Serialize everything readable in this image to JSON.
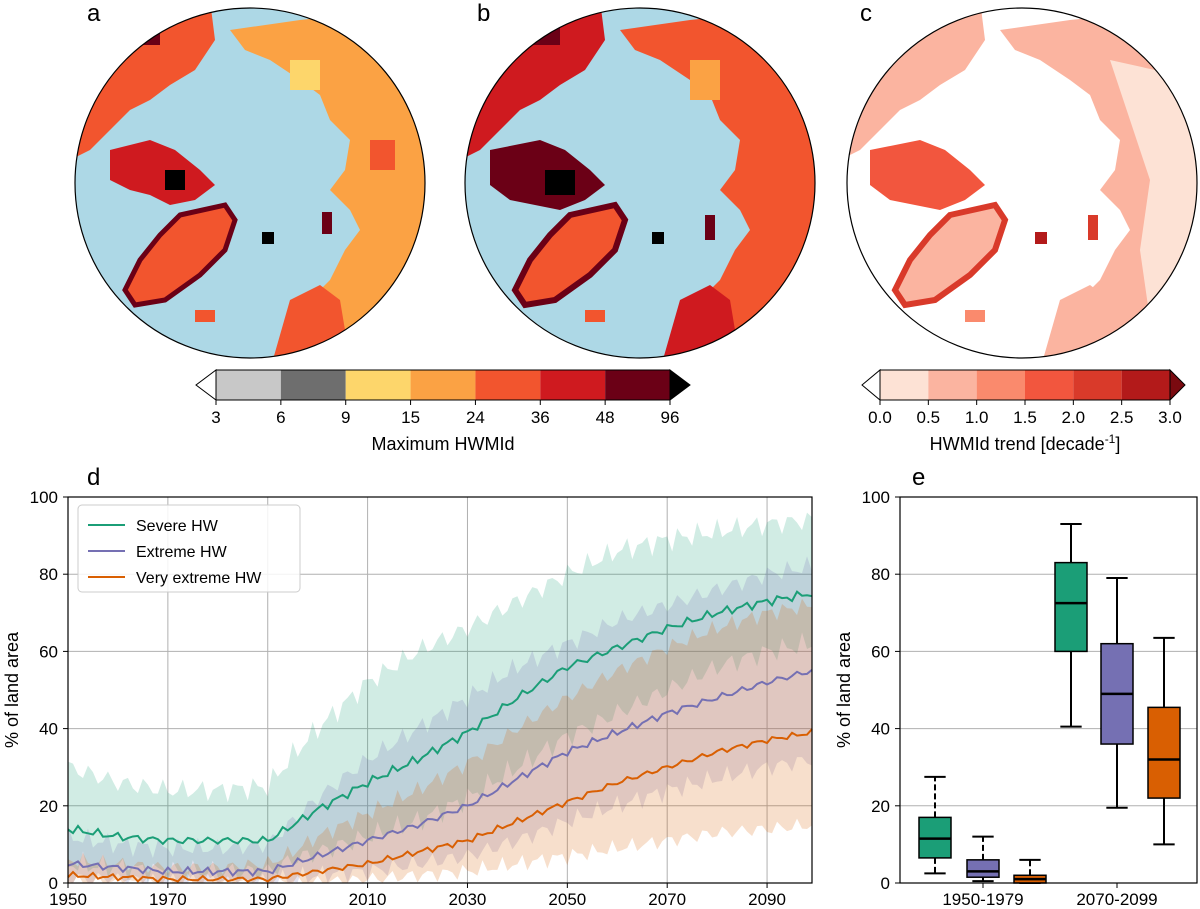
{
  "panels": {
    "a": {
      "label": "a"
    },
    "b": {
      "label": "b"
    },
    "c": {
      "label": "c"
    },
    "d": {
      "label": "d"
    },
    "e": {
      "label": "e"
    }
  },
  "colors": {
    "ocean": "#add8e6",
    "land_edge": "#333333",
    "severe": "#1b9e77",
    "extreme": "#7570b3",
    "very_extreme": "#d95f02",
    "hwmid_bins": [
      "#c8c8c8",
      "#6e6e6e",
      "#fdd66b",
      "#fba244",
      "#f2552e",
      "#cf1a1f",
      "#6b0016",
      "#000000"
    ],
    "trend_bins": [
      "#fde2d5",
      "#fbb4a0",
      "#fa8a6d",
      "#f2563e",
      "#d93a2a",
      "#b31a1a",
      "#7a0a10"
    ]
  },
  "colorbar_left": {
    "ticks": [
      "3",
      "6",
      "9",
      "15",
      "24",
      "36",
      "48",
      "96"
    ],
    "label": "Maximum HWMId"
  },
  "colorbar_right": {
    "ticks": [
      "0.0",
      "0.5",
      "1.0",
      "1.5",
      "2.0",
      "2.5",
      "3.0"
    ],
    "label_main": "HWMId trend [decade",
    "label_sup": "-1",
    "label_end": "]"
  },
  "chart_data": [
    {
      "type": "line",
      "panel": "d",
      "xlabel": "",
      "ylabel": "% of land area",
      "xlim": [
        1950,
        2099
      ],
      "ylim": [
        0,
        100
      ],
      "xticks": [
        1950,
        1970,
        1990,
        2010,
        2030,
        2050,
        2070,
        2090
      ],
      "yticks": [
        0,
        20,
        40,
        60,
        80,
        100
      ],
      "grid": true,
      "legend_position": "top-left",
      "x_anchor_years": [
        1950,
        1960,
        1970,
        1980,
        1990,
        1995,
        2000,
        2010,
        2020,
        2030,
        2040,
        2050,
        2060,
        2070,
        2080,
        2090,
        2099
      ],
      "series": [
        {
          "name": "Severe HW",
          "values": [
            14,
            12,
            11,
            11,
            11,
            15,
            19,
            26,
            32,
            39,
            48,
            56,
            61,
            66,
            70,
            73,
            75
          ],
          "lower": [
            5,
            4,
            3,
            3,
            3,
            6,
            8,
            12,
            16,
            22,
            30,
            38,
            44,
            50,
            56,
            60,
            62
          ],
          "upper": [
            30,
            26,
            24,
            24,
            25,
            33,
            40,
            52,
            60,
            66,
            73,
            80,
            86,
            89,
            91,
            93,
            94
          ]
        },
        {
          "name": "Extreme HW",
          "values": [
            5,
            4,
            3,
            3,
            3,
            5,
            7,
            11,
            15,
            20,
            27,
            34,
            39,
            44,
            48,
            52,
            55
          ],
          "lower": [
            1,
            1,
            0,
            0,
            0,
            1,
            2,
            3,
            5,
            7,
            11,
            16,
            20,
            24,
            27,
            30,
            32
          ],
          "upper": [
            12,
            10,
            9,
            9,
            10,
            16,
            22,
            32,
            40,
            48,
            56,
            62,
            68,
            72,
            76,
            80,
            82
          ]
        },
        {
          "name": "Very extreme HW",
          "values": [
            2,
            1.5,
            1,
            1,
            1,
            2,
            3,
            5,
            8,
            11,
            16,
            21,
            26,
            30,
            34,
            37,
            39
          ],
          "lower": [
            0,
            0,
            0,
            0,
            0,
            0,
            0,
            1,
            2,
            3,
            5,
            7,
            9,
            11,
            13,
            14,
            15
          ],
          "upper": [
            6,
            5,
            4,
            4,
            5,
            8,
            12,
            18,
            24,
            31,
            40,
            48,
            55,
            61,
            66,
            70,
            72
          ]
        }
      ]
    },
    {
      "type": "box",
      "panel": "e",
      "xlabel": "",
      "ylabel": "% of land area",
      "ylim": [
        0,
        100
      ],
      "yticks": [
        0,
        20,
        40,
        60,
        80,
        100
      ],
      "grid": true,
      "categories": [
        "1950-1979",
        "2070-2099"
      ],
      "boxes": [
        {
          "period": "1950-1979",
          "series": "Severe HW",
          "min": 2.5,
          "q1": 6.5,
          "median": 11.5,
          "q3": 17,
          "max": 27.5
        },
        {
          "period": "1950-1979",
          "series": "Extreme HW",
          "min": 0.5,
          "q1": 1.5,
          "median": 3,
          "q3": 6,
          "max": 12
        },
        {
          "period": "1950-1979",
          "series": "Very extreme HW",
          "min": 0,
          "q1": 0,
          "median": 1,
          "q3": 2,
          "max": 6
        },
        {
          "period": "2070-2099",
          "series": "Severe HW",
          "min": 40.5,
          "q1": 60,
          "median": 72.5,
          "q3": 83,
          "max": 93
        },
        {
          "period": "2070-2099",
          "series": "Extreme HW",
          "min": 19.5,
          "q1": 36,
          "median": 49,
          "q3": 62,
          "max": 79
        },
        {
          "period": "2070-2099",
          "series": "Very extreme HW",
          "min": 10,
          "q1": 22,
          "median": 32,
          "q3": 45.5,
          "max": 63.5
        }
      ]
    }
  ]
}
